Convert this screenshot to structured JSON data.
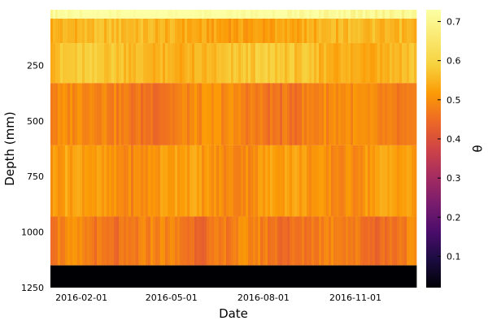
{
  "chart_data": {
    "type": "heatmap",
    "title": "",
    "xlabel": "Date",
    "ylabel": "Depth (mm)",
    "colorbar_label": "θ",
    "colormap": "inferno",
    "x_range": [
      "2016-01-01",
      "2016-12-31"
    ],
    "x_ticks": [
      "2016-02-01",
      "2016-05-01",
      "2016-08-01",
      "2016-11-01"
    ],
    "y_range": [
      0,
      1250
    ],
    "y_inverted": true,
    "y_ticks": [
      "250",
      "500",
      "750",
      "1000",
      "1250"
    ],
    "color_range": [
      0.02,
      0.73
    ],
    "colorbar_ticks": [
      "0.1",
      "0.2",
      "0.3",
      "0.4",
      "0.5",
      "0.6",
      "0.7"
    ],
    "grid": false,
    "depth_layers": [
      {
        "depth_range": [
          0,
          40
        ],
        "typical_theta": 0.72
      },
      {
        "depth_range": [
          40,
          150
        ],
        "typical_theta": 0.54
      },
      {
        "depth_range": [
          150,
          330
        ],
        "typical_theta": 0.56
      },
      {
        "depth_range": [
          330,
          610
        ],
        "typical_theta": 0.48
      },
      {
        "depth_range": [
          610,
          930
        ],
        "typical_theta": 0.51
      },
      {
        "depth_range": [
          930,
          1150
        ],
        "typical_theta": 0.47
      },
      {
        "depth_range": [
          1150,
          1250
        ],
        "typical_theta": 0.02
      }
    ]
  }
}
